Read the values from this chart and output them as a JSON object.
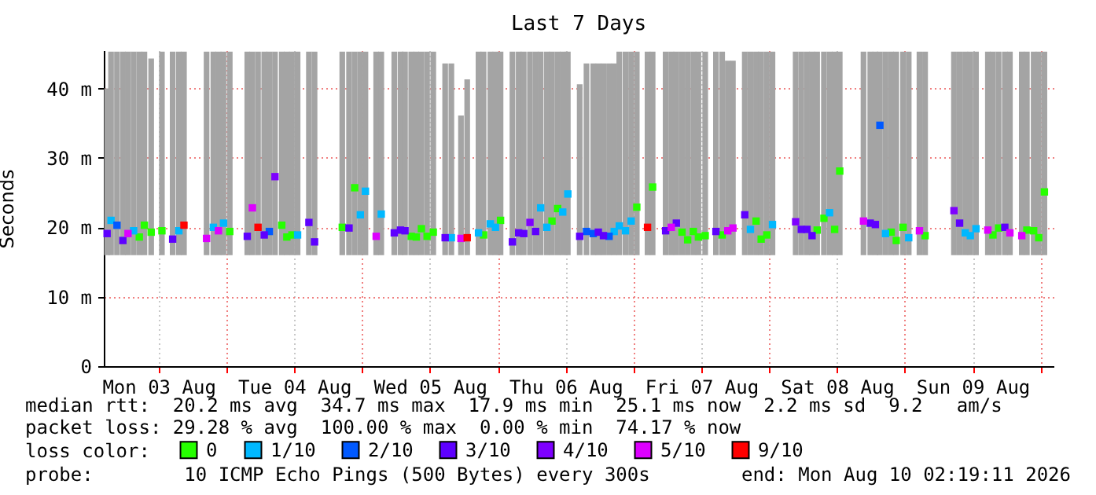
{
  "chart_data": {
    "type": "scatter",
    "title": "Last 7 Days",
    "ylabel": "Seconds",
    "legend_title": "loss color:",
    "legend": "bottom",
    "grid": true,
    "marker": "square",
    "annotations": [
      "median rtt:  20.2 ms avg  34.7 ms max  17.9 ms min  25.1 ms now  2.2 ms sd  9.2   am/s",
      "packet loss: 29.28 % avg  100.00 % max  0.00 % min  74.17 % now",
      "probe:        10 ICMP Echo Pings (500 Bytes) every 300s",
      "end: Mon Aug 10 02:19:11 2026"
    ],
    "xlim": [
      "2026-08-03T02:19",
      "2026-08-10T02:19"
    ],
    "xticks": [
      {
        "value": "2026-08-03T12:00",
        "label": "Mon 03 Aug"
      },
      {
        "value": "2026-08-04T00:00",
        "label": null
      },
      {
        "value": "2026-08-04T12:00",
        "label": "Tue 04 Aug"
      },
      {
        "value": "2026-08-05T00:00",
        "label": null
      },
      {
        "value": "2026-08-05T12:00",
        "label": "Wed 05 Aug"
      },
      {
        "value": "2026-08-06T00:00",
        "label": null
      },
      {
        "value": "2026-08-06T12:00",
        "label": "Thu 06 Aug"
      },
      {
        "value": "2026-08-07T00:00",
        "label": null
      },
      {
        "value": "2026-08-07T12:00",
        "label": "Fri 07 Aug"
      },
      {
        "value": "2026-08-08T00:00",
        "label": null
      },
      {
        "value": "2026-08-08T12:00",
        "label": "Sat 08 Aug"
      },
      {
        "value": "2026-08-09T00:00",
        "label": null
      },
      {
        "value": "2026-08-09T12:00",
        "label": "Sun 09 Aug"
      },
      {
        "value": "2026-08-10T00:00",
        "label": null
      }
    ],
    "ylim": [
      0,
      45.5
    ],
    "yticks": [
      0,
      {
        "value": 10,
        "label": "10 m"
      },
      {
        "value": 20,
        "label": "20 m"
      },
      {
        "value": 30,
        "label": "30 m"
      },
      {
        "value": 40,
        "label": "40 m"
      }
    ],
    "series": [
      {
        "type": "bar",
        "color": "#a4a4a4",
        "x": [
          "2026-08-03T02:54",
          "2026-08-03T03:36",
          "2026-08-03T04:39",
          "2026-08-03T05:42",
          "2026-08-03T06:36",
          "2026-08-03T07:36",
          "2026-08-03T08:36",
          "2026-08-03T09:30",
          "2026-08-03T10:42",
          "2026-08-03T12:36",
          "2026-08-03T14:30",
          "2026-08-03T15:36",
          "2026-08-03T16:30",
          "2026-08-03T20:30",
          "2026-08-03T21:42",
          "2026-08-03T22:36",
          "2026-08-03T23:30",
          "2026-08-04T00:36",
          "2026-08-04T03:42",
          "2026-08-04T04:36",
          "2026-08-04T05:36",
          "2026-08-04T06:42",
          "2026-08-04T07:36",
          "2026-08-04T08:36",
          "2026-08-04T09:48",
          "2026-08-04T10:42",
          "2026-08-04T11:36",
          "2026-08-04T12:36",
          "2026-08-04T14:36",
          "2026-08-04T15:36",
          "2026-08-04T20:30",
          "2026-08-04T21:42",
          "2026-08-04T22:42",
          "2026-08-04T23:42",
          "2026-08-05T00:36",
          "2026-08-05T02:30",
          "2026-08-05T03:24",
          "2026-08-05T05:42",
          "2026-08-05T06:48",
          "2026-08-05T07:36",
          "2026-08-05T08:42",
          "2026-08-05T09:36",
          "2026-08-05T10:30",
          "2026-08-05T11:30",
          "2026-08-05T12:36",
          "2026-08-05T14:42",
          "2026-08-05T15:48",
          "2026-08-05T17:30",
          "2026-08-05T18:36",
          "2026-08-05T20:36",
          "2026-08-05T21:30",
          "2026-08-05T22:42",
          "2026-08-05T23:36",
          "2026-08-06T00:30",
          "2026-08-06T02:36",
          "2026-08-06T03:42",
          "2026-08-06T04:36",
          "2026-08-06T05:42",
          "2026-08-06T06:42",
          "2026-08-06T07:36",
          "2026-08-06T08:42",
          "2026-08-06T09:36",
          "2026-08-06T10:36",
          "2026-08-06T11:30",
          "2026-08-06T12:24",
          "2026-08-06T14:30",
          "2026-08-06T15:42",
          "2026-08-06T16:54",
          "2026-08-06T17:48",
          "2026-08-06T18:42",
          "2026-08-06T19:42",
          "2026-08-06T20:36",
          "2026-08-06T21:30",
          "2026-08-06T22:36",
          "2026-08-06T23:36",
          "2026-08-07T00:36",
          "2026-08-07T02:30",
          "2026-08-07T03:24",
          "2026-08-07T05:42",
          "2026-08-07T06:42",
          "2026-08-07T07:36",
          "2026-08-07T08:36",
          "2026-08-07T09:36",
          "2026-08-07T10:36",
          "2026-08-07T11:30",
          "2026-08-07T12:42",
          "2026-08-07T14:36",
          "2026-08-07T15:42",
          "2026-08-07T16:42",
          "2026-08-07T17:36",
          "2026-08-07T19:42",
          "2026-08-07T20:42",
          "2026-08-07T21:42",
          "2026-08-07T22:36",
          "2026-08-07T23:36",
          "2026-08-08T00:36",
          "2026-08-08T04:42",
          "2026-08-08T05:42",
          "2026-08-08T06:42",
          "2026-08-08T07:36",
          "2026-08-08T08:30",
          "2026-08-08T09:42",
          "2026-08-08T10:42",
          "2026-08-08T11:36",
          "2026-08-08T12:30",
          "2026-08-08T16:42",
          "2026-08-08T17:54",
          "2026-08-08T18:48",
          "2026-08-08T19:36",
          "2026-08-08T20:36",
          "2026-08-08T21:36",
          "2026-08-08T22:30",
          "2026-08-08T23:42",
          "2026-08-09T00:42",
          "2026-08-09T02:36",
          "2026-08-09T03:36",
          "2026-08-09T08:42",
          "2026-08-09T09:42",
          "2026-08-09T10:42",
          "2026-08-09T11:36",
          "2026-08-09T12:36",
          "2026-08-09T14:42",
          "2026-08-09T15:36",
          "2026-08-09T16:36",
          "2026-08-09T17:42",
          "2026-08-09T18:36",
          "2026-08-09T20:42",
          "2026-08-09T21:36",
          "2026-08-09T22:48",
          "2026-08-09T23:42",
          "2026-08-10T00:42"
        ],
        "base": [
          16,
          16,
          16,
          16,
          16,
          16,
          16,
          16,
          16,
          16,
          16,
          16,
          16,
          16,
          16,
          16,
          16,
          16,
          16,
          16,
          16,
          16,
          16,
          16,
          16,
          16,
          16,
          16,
          16,
          16,
          16,
          16,
          16,
          16,
          16,
          16,
          16,
          16,
          16,
          16,
          16,
          16,
          16,
          16,
          16,
          16,
          16,
          16,
          16,
          16,
          16,
          16,
          16,
          16,
          16,
          16,
          16,
          16,
          16,
          16,
          16,
          16,
          16,
          16,
          16,
          16,
          16,
          16,
          16,
          16,
          16,
          16,
          16,
          16,
          16,
          16,
          16,
          16,
          16,
          16,
          16,
          16,
          16,
          16,
          16,
          16,
          16,
          16,
          16,
          16,
          16,
          16,
          16,
          16,
          16,
          16,
          16,
          16,
          16,
          16,
          16,
          16,
          16,
          16,
          16,
          16,
          16,
          16,
          16,
          16,
          16,
          16,
          16,
          16,
          16,
          16,
          16,
          16,
          16,
          16,
          16,
          16,
          16,
          16,
          16,
          16,
          16,
          16,
          16,
          16,
          16
        ],
        "values": [
          24,
          29.3,
          29.3,
          29.3,
          29.3,
          29.3,
          29.3,
          29.3,
          28.3,
          29.3,
          29.3,
          29.3,
          29.3,
          29.3,
          29.3,
          29.3,
          29.3,
          29.3,
          29.3,
          29.3,
          29.3,
          29.3,
          29.3,
          29.3,
          29.3,
          29.3,
          29.3,
          29.3,
          29.3,
          29.3,
          29.3,
          29.3,
          29.3,
          29.3,
          29.3,
          29.3,
          29.3,
          29.3,
          29.3,
          29.3,
          29.3,
          29.3,
          29.3,
          29.3,
          29.3,
          27.6,
          27.6,
          20.1,
          25.3,
          29.3,
          29.3,
          29.3,
          29.3,
          29.3,
          29.3,
          29.3,
          29.3,
          29.3,
          29.3,
          29.3,
          29.3,
          29.3,
          29.3,
          29.3,
          29.3,
          24.6,
          27.6,
          27.6,
          27.6,
          27.6,
          27.6,
          27.6,
          29.3,
          29.3,
          29.3,
          29.3,
          29.3,
          29.3,
          29.3,
          29.3,
          29.3,
          29.3,
          29.3,
          29.3,
          29.3,
          29.3,
          29.3,
          29.3,
          28,
          28,
          29.3,
          29.3,
          29.3,
          29.3,
          29.3,
          29.3,
          29.3,
          29.3,
          29.3,
          29.3,
          29.3,
          29.3,
          29.3,
          29.3,
          29.3,
          29.3,
          29.3,
          29.3,
          29.3,
          29.3,
          29.3,
          29.3,
          29.3,
          29.3,
          29.3,
          29.3,
          29.3,
          29.3,
          29.3,
          29.3,
          29.3,
          29.3,
          29.3,
          29.3,
          29.3,
          29.3,
          29.3,
          29.3,
          29.3,
          29.3,
          29.3
        ]
      },
      {
        "name": "0",
        "color": "#26ff00",
        "x": [
          "2026-08-03T08:36",
          "2026-08-03T09:30",
          "2026-08-03T10:42",
          "2026-08-03T12:36",
          "2026-08-04T00:36",
          "2026-08-04T09:48",
          "2026-08-04T10:42",
          "2026-08-04T11:36",
          "2026-08-04T20:30",
          "2026-08-04T22:42",
          "2026-08-05T08:42",
          "2026-08-05T09:36",
          "2026-08-05T10:30",
          "2026-08-05T11:30",
          "2026-08-05T12:36",
          "2026-08-05T21:30",
          "2026-08-06T00:30",
          "2026-08-06T09:36",
          "2026-08-06T10:36",
          "2026-08-07T00:36",
          "2026-08-07T03:24",
          "2026-08-07T08:36",
          "2026-08-07T09:36",
          "2026-08-07T10:36",
          "2026-08-07T11:30",
          "2026-08-07T12:42",
          "2026-08-07T15:42",
          "2026-08-07T21:42",
          "2026-08-07T22:36",
          "2026-08-07T23:36",
          "2026-08-08T08:30",
          "2026-08-08T09:42",
          "2026-08-08T11:36",
          "2026-08-08T12:30",
          "2026-08-08T21:36",
          "2026-08-08T22:30",
          "2026-08-08T23:42",
          "2026-08-09T03:36",
          "2026-08-09T15:36",
          "2026-08-09T16:36",
          "2026-08-09T21:36",
          "2026-08-09T22:48",
          "2026-08-09T23:42",
          "2026-08-10T00:42"
        ],
        "values": [
          18.6,
          20.3,
          19.3,
          19.5,
          19.4,
          20.3,
          18.6,
          18.9,
          20,
          25.7,
          18.7,
          18.6,
          19.8,
          18.7,
          19.3,
          18.9,
          21,
          20.9,
          22.7,
          22.9,
          25.8,
          19.3,
          18.2,
          19.4,
          18.6,
          18.8,
          18.9,
          20.9,
          18.3,
          18.9,
          19.6,
          21.3,
          19.7,
          28.1,
          19.3,
          18.1,
          20,
          18.8,
          18.9,
          19.9,
          19.6,
          19.5,
          18.5,
          25.1
        ]
      },
      {
        "name": "1/10",
        "color": "#00b8ff",
        "x": [
          "2026-08-03T03:36",
          "2026-08-03T07:36",
          "2026-08-03T15:36",
          "2026-08-03T21:42",
          "2026-08-03T23:30",
          "2026-08-04T12:36",
          "2026-08-04T23:42",
          "2026-08-05T00:36",
          "2026-08-05T03:24",
          "2026-08-05T15:48",
          "2026-08-05T20:36",
          "2026-08-05T22:42",
          "2026-08-05T23:36",
          "2026-08-06T07:36",
          "2026-08-06T08:42",
          "2026-08-06T11:30",
          "2026-08-06T12:24",
          "2026-08-06T20:36",
          "2026-08-06T21:30",
          "2026-08-06T22:36",
          "2026-08-06T23:36",
          "2026-08-07T20:42",
          "2026-08-08T00:36",
          "2026-08-08T10:42",
          "2026-08-08T20:36",
          "2026-08-09T00:42",
          "2026-08-09T10:42",
          "2026-08-09T11:36",
          "2026-08-09T12:36"
        ],
        "values": [
          21,
          19.5,
          19.5,
          20,
          20.6,
          18.9,
          21.8,
          25.2,
          21.9,
          18.5,
          19.2,
          20.5,
          20,
          22.8,
          20,
          22.2,
          24.8,
          19.4,
          20.2,
          19.5,
          20.9,
          19.7,
          20.4,
          22.1,
          19.1,
          18.5,
          19.2,
          18.8,
          19.8
        ]
      },
      {
        "name": "2/10",
        "color": "#0059ff",
        "x": [
          "2026-08-03T04:39",
          "2026-08-04T07:36",
          "2026-08-06T15:42",
          "2026-08-06T16:54",
          "2026-08-06T19:42",
          "2026-08-08T19:36"
        ],
        "values": [
          20.3,
          19.4,
          19.4,
          19.1,
          18.7,
          34.7
        ]
      },
      {
        "name": "3/10",
        "color": "#5e00ff",
        "x": [
          "2026-08-03T02:54",
          "2026-08-03T05:42",
          "2026-08-03T14:30",
          "2026-08-04T03:42",
          "2026-08-04T06:42",
          "2026-08-04T14:36",
          "2026-08-04T15:36",
          "2026-08-04T21:42",
          "2026-08-05T05:42",
          "2026-08-05T06:48",
          "2026-08-05T07:36",
          "2026-08-05T14:42",
          "2026-08-06T02:36",
          "2026-08-06T03:42",
          "2026-08-06T04:36",
          "2026-08-06T06:42",
          "2026-08-06T14:30",
          "2026-08-06T17:48",
          "2026-08-06T18:42",
          "2026-08-07T05:42",
          "2026-08-07T07:36",
          "2026-08-07T14:36",
          "2026-08-07T19:42",
          "2026-08-08T05:42",
          "2026-08-08T06:42",
          "2026-08-08T07:36",
          "2026-08-08T17:54",
          "2026-08-08T18:48",
          "2026-08-09T09:42",
          "2026-08-09T17:42"
        ],
        "values": [
          19.1,
          18.1,
          18.3,
          18.7,
          18.9,
          20.7,
          17.9,
          19.9,
          19.2,
          19.6,
          19.5,
          18.5,
          17.9,
          19.2,
          19.1,
          19.4,
          18.7,
          19.3,
          18.8,
          19.5,
          20.6,
          19.4,
          21.8,
          19.7,
          19.7,
          18.8,
          20.6,
          20.4,
          20.6,
          20
        ]
      },
      {
        "name": "4/10",
        "color": "#7e00ff",
        "x": [
          "2026-08-04T08:36",
          "2026-08-06T05:42",
          "2026-08-08T04:42",
          "2026-08-09T08:42"
        ],
        "values": [
          27.3,
          20.7,
          20.8,
          22.4
        ]
      },
      {
        "name": "5/10",
        "color": "#dd00ff",
        "x": [
          "2026-08-03T06:36",
          "2026-08-03T20:30",
          "2026-08-03T22:36",
          "2026-08-04T04:36",
          "2026-08-05T02:30",
          "2026-08-05T17:30",
          "2026-08-07T06:42",
          "2026-08-07T16:42",
          "2026-08-07T17:36",
          "2026-08-08T16:42",
          "2026-08-09T02:36",
          "2026-08-09T14:42",
          "2026-08-09T18:36",
          "2026-08-09T20:42"
        ],
        "values": [
          19.1,
          18.4,
          19.5,
          22.8,
          18.7,
          18.4,
          20,
          19.5,
          19.9,
          20.9,
          19.5,
          19.6,
          19.2,
          18.8
        ]
      },
      {
        "name": "9/10",
        "color": "#ff0000",
        "x": [
          "2026-08-03T16:30",
          "2026-08-04T05:36",
          "2026-08-05T18:36",
          "2026-08-07T02:30"
        ],
        "values": [
          20.3,
          20,
          18.5,
          20
        ]
      }
    ]
  }
}
